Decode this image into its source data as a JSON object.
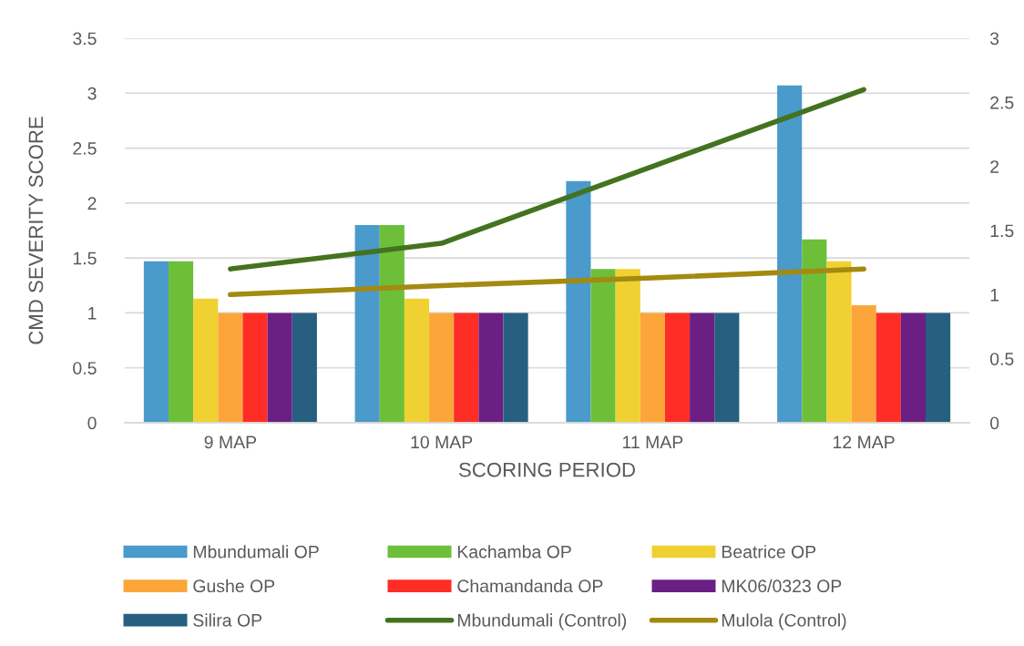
{
  "chart_data": {
    "type": "bar",
    "xlabel": "SCORING PERIOD",
    "ylabel": "CMD SEVERITY SCORE",
    "categories": [
      "9 MAP",
      "10 MAP",
      "11 MAP",
      "12 MAP"
    ],
    "series": [
      {
        "name": "Mbundumali OP",
        "color": "#4a9acb",
        "values": [
          1.47,
          1.8,
          2.2,
          3.07
        ]
      },
      {
        "name": "Kachamba OP",
        "color": "#6dbf3a",
        "values": [
          1.47,
          1.8,
          1.4,
          1.67
        ]
      },
      {
        "name": "Beatrice OP",
        "color": "#f0d132",
        "values": [
          1.13,
          1.13,
          1.4,
          1.47
        ]
      },
      {
        "name": "Gushe OP",
        "color": "#fca63a",
        "values": [
          1,
          1,
          1,
          1.07
        ]
      },
      {
        "name": "Chamandanda OP",
        "color": "#fe2d25",
        "values": [
          1,
          1,
          1,
          1
        ]
      },
      {
        "name": "MK06/0323 OP",
        "color": "#6b1f82",
        "values": [
          1,
          1,
          1,
          1
        ]
      },
      {
        "name": "Silira OP",
        "color": "#265f80",
        "values": [
          1,
          1,
          1,
          1
        ]
      },
      {
        "name": "Mbundumali (Control)",
        "type": "line",
        "axis": "y2",
        "color": "#43731f",
        "values": [
          1.2,
          1.4,
          2.0,
          2.6
        ]
      },
      {
        "name": "Mulola (Control)",
        "type": "line",
        "axis": "y2",
        "color": "#a38a10",
        "values": [
          1.0,
          1.07,
          1.13,
          1.2
        ]
      }
    ],
    "ylim": [
      0,
      3.5
    ],
    "yticks": [
      0,
      0.5,
      1,
      1.5,
      2,
      2.5,
      3,
      3.5
    ],
    "y2lim": [
      0,
      3
    ],
    "y2ticks": [
      0,
      0.5,
      1,
      1.5,
      2,
      2.5,
      3
    ],
    "grid": "y",
    "legend": "bottom",
    "marker": "none",
    "line_style": "solid"
  }
}
